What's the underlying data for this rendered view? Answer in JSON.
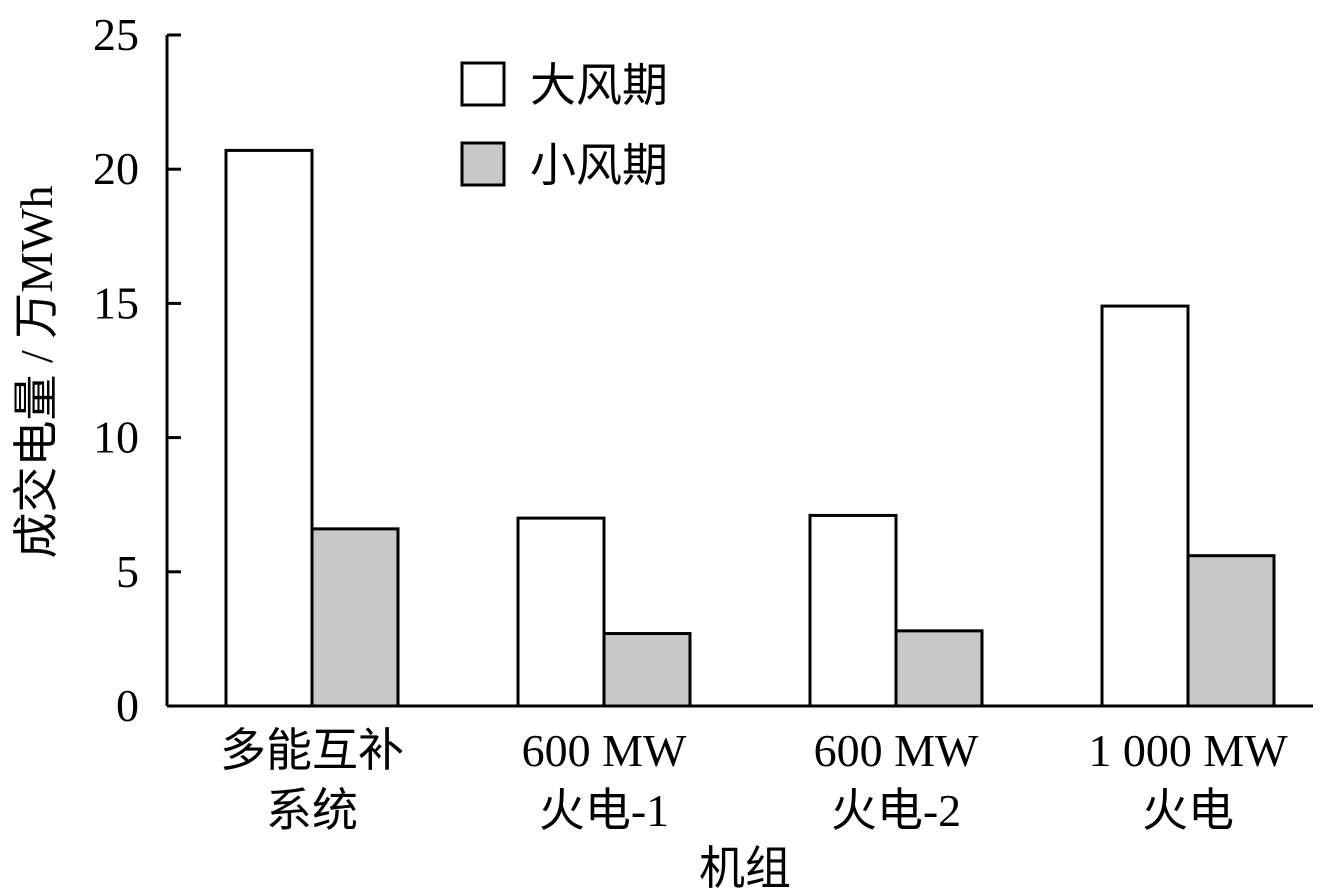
{
  "chart_data": {
    "type": "bar",
    "title": "",
    "xlabel": "机组",
    "ylabel": "成交电量 / 万MWh",
    "ylim": [
      0,
      25
    ],
    "yticks": [
      "0",
      "5",
      "10",
      "15",
      "20",
      "25"
    ],
    "categories": [
      [
        "多能互补",
        "系统"
      ],
      [
        "600 MW",
        "火电-1"
      ],
      [
        "600 MW",
        "火电-2"
      ],
      [
        "1 000 MW",
        "火电"
      ]
    ],
    "series": [
      {
        "name": "大风期",
        "color": "#ffffff",
        "values": [
          20.7,
          7.0,
          7.1,
          14.9
        ]
      },
      {
        "name": "小风期",
        "color": "#c8c8c8",
        "values": [
          6.6,
          2.7,
          2.8,
          5.6
        ]
      }
    ],
    "grid": false,
    "legend_position": "top-center"
  }
}
